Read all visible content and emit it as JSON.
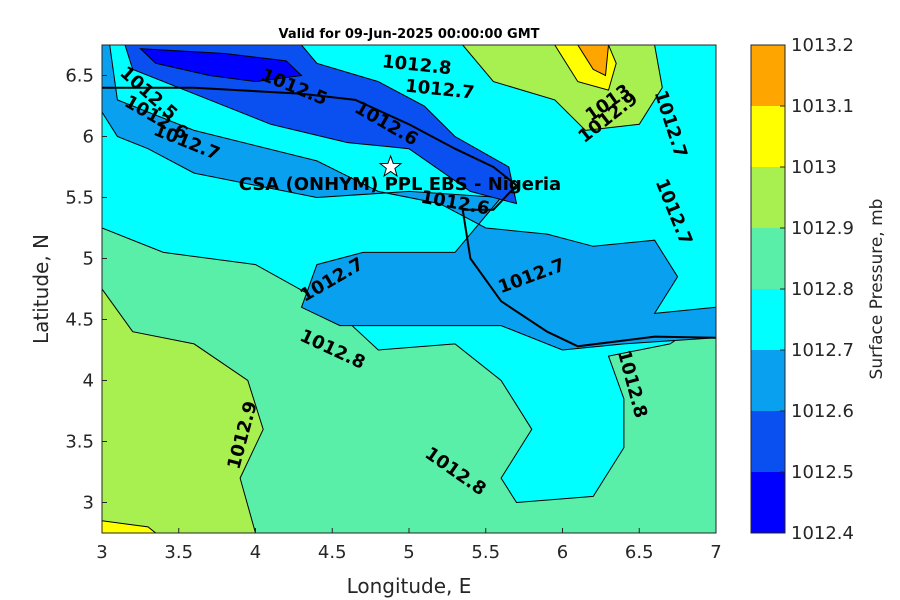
{
  "chart_data": {
    "type": "contour",
    "title": "Valid for 09-Jun-2025 00:00:00 GMT",
    "xlabel": "Longitude, E",
    "ylabel": "Latitude, N",
    "xlim": [
      3,
      7
    ],
    "ylim": [
      2.75,
      6.75
    ],
    "xticks": [
      "3",
      "3.5",
      "4",
      "4.5",
      "5",
      "5.5",
      "6",
      "6.5",
      "7"
    ],
    "yticks": [
      "3",
      "3.5",
      "4",
      "4.5",
      "5",
      "5.5",
      "6",
      "6.5"
    ],
    "colorbar": {
      "label": "Surface Pressure, mb",
      "levels": [
        "1012.4",
        "1012.5",
        "1012.6",
        "1012.7",
        "1012.8",
        "1012.9",
        "1013",
        "1013.1",
        "1013.2"
      ],
      "colors": [
        "#0000ff",
        "#0a50f0",
        "#0aa0f0",
        "#00ffff",
        "#5aefa8",
        "#a8f050",
        "#ffff00",
        "#ffa500",
        "#ff5a00"
      ]
    },
    "site": {
      "label": "CSA (ONHYM) PPL EBS - Nigeria",
      "lon": 4.88,
      "lat": 5.75
    },
    "contour_labels": [
      {
        "text": "1012.5",
        "lon": 3.3,
        "lat": 6.35,
        "rot": 42
      },
      {
        "text": "1012.6",
        "lon": 3.35,
        "lat": 6.15,
        "rot": 30
      },
      {
        "text": "1012.7",
        "lon": 3.55,
        "lat": 5.95,
        "rot": 22
      },
      {
        "text": "1012.5",
        "lon": 4.25,
        "lat": 6.4,
        "rot": 22
      },
      {
        "text": "1012.6",
        "lon": 4.85,
        "lat": 6.1,
        "rot": 30
      },
      {
        "text": "1012.8",
        "lon": 5.05,
        "lat": 6.58,
        "rot": 6
      },
      {
        "text": "1012.7",
        "lon": 5.2,
        "lat": 6.38,
        "rot": 6
      },
      {
        "text": "1013",
        "lon": 6.3,
        "lat": 6.27,
        "rot": -35
      },
      {
        "text": "1012.9",
        "lon": 6.3,
        "lat": 6.15,
        "rot": -38
      },
      {
        "text": "1012.7",
        "lon": 6.7,
        "lat": 6.1,
        "rot": 72
      },
      {
        "text": "1012.7",
        "lon": 6.72,
        "lat": 5.38,
        "rot": 68
      },
      {
        "text": "1012.6",
        "lon": 5.3,
        "lat": 5.45,
        "rot": 10
      },
      {
        "text": "1012.7",
        "lon": 4.5,
        "lat": 4.82,
        "rot": -30
      },
      {
        "text": "1012.7",
        "lon": 5.8,
        "lat": 4.85,
        "rot": -20
      },
      {
        "text": "1012.8",
        "lon": 4.5,
        "lat": 4.25,
        "rot": 25
      },
      {
        "text": "1012.8",
        "lon": 6.45,
        "lat": 3.97,
        "rot": 75
      },
      {
        "text": "1012.9",
        "lon": 3.92,
        "lat": 3.55,
        "rot": -75
      },
      {
        "text": "1012.8",
        "lon": 5.3,
        "lat": 3.25,
        "rot": 35
      }
    ]
  }
}
